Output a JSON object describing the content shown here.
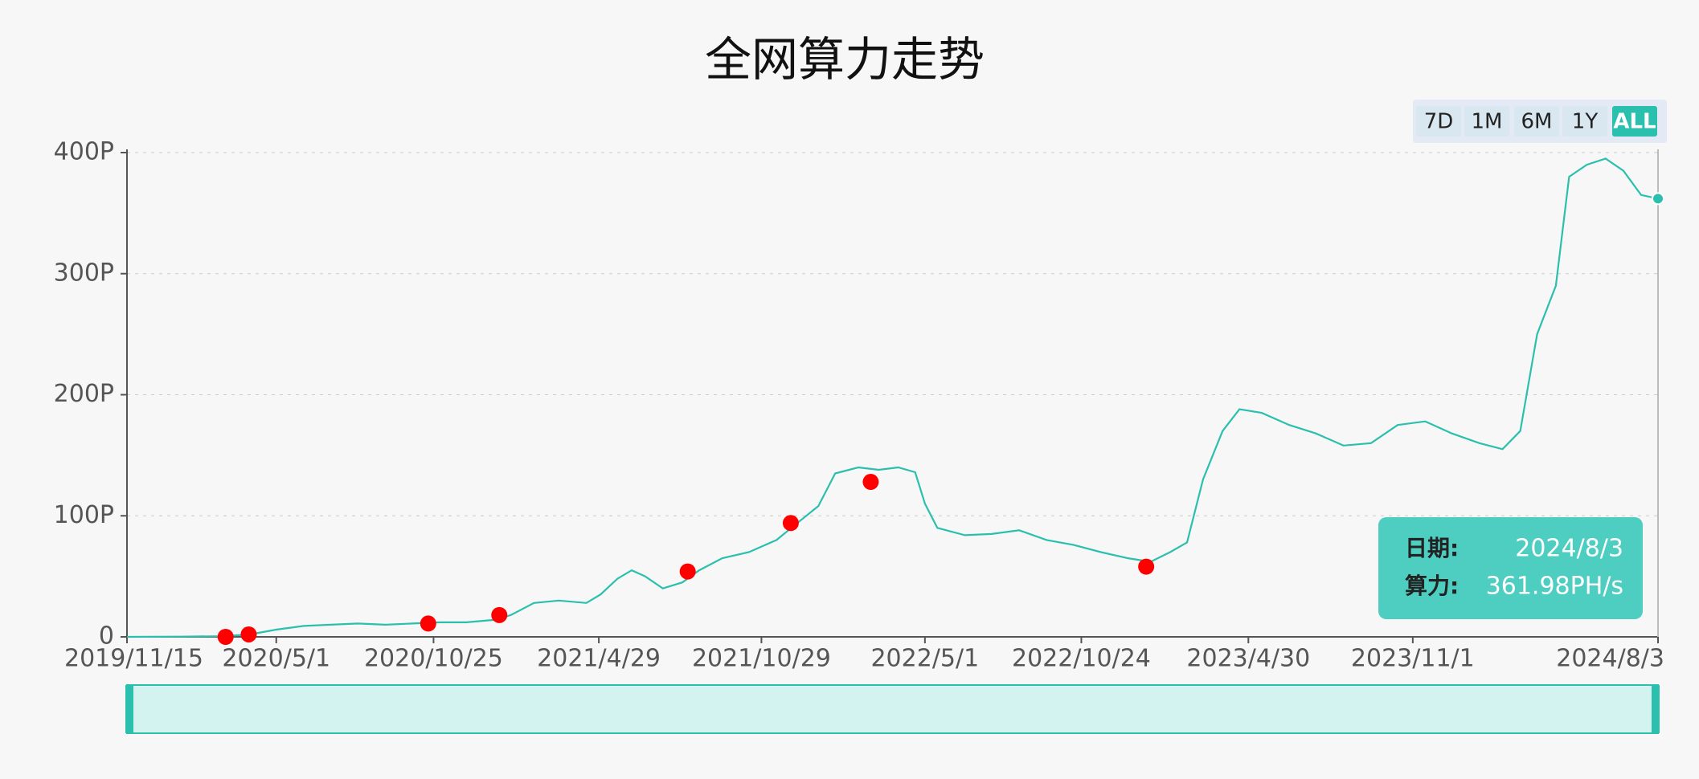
{
  "chart_data": {
    "type": "line",
    "title": "全网算力走势",
    "color": "#2bbfae",
    "x": [
      "2019/11/15",
      "2020/1/15",
      "2020/3/1",
      "2020/4/1",
      "2020/5/1",
      "2020/6/1",
      "2020/7/1",
      "2020/8/1",
      "2020/9/1",
      "2020/10/1",
      "2020/11/1",
      "2020/12/1",
      "2021/1/1",
      "2021/1/20",
      "2021/2/15",
      "2021/3/15",
      "2021/4/15",
      "2021/5/1",
      "2021/5/20",
      "2021/6/5",
      "2021/6/20",
      "2021/7/10",
      "2021/8/1",
      "2021/8/20",
      "2021/9/15",
      "2021/10/15",
      "2021/11/15",
      "2021/12/10",
      "2022/1/1",
      "2022/1/20",
      "2022/2/15",
      "2022/3/10",
      "2022/4/1",
      "2022/4/20",
      "2022/5/1",
      "2022/5/15",
      "2022/6/15",
      "2022/7/15",
      "2022/8/15",
      "2022/9/15",
      "2022/10/15",
      "2022/11/15",
      "2022/12/15",
      "2023/1/10",
      "2023/2/1",
      "2023/2/20",
      "2023/3/10",
      "2023/4/1",
      "2023/4/20",
      "2023/5/15",
      "2023/6/15",
      "2023/7/15",
      "2023/8/15",
      "2023/9/15",
      "2023/10/15",
      "2023/11/15",
      "2023/12/15",
      "2024/1/15",
      "2024/2/10",
      "2024/3/1",
      "2024/3/20",
      "2024/4/10",
      "2024/4/25",
      "2024/5/15",
      "2024/6/5",
      "2024/6/25",
      "2024/7/15",
      "2024/8/3"
    ],
    "values": [
      0,
      0.2,
      0.5,
      2,
      6,
      9,
      10,
      11,
      10,
      11,
      12,
      12,
      14,
      18,
      28,
      30,
      28,
      35,
      48,
      55,
      50,
      40,
      45,
      55,
      65,
      70,
      80,
      95,
      108,
      135,
      140,
      138,
      140,
      136,
      110,
      90,
      84,
      85,
      88,
      80,
      76,
      70,
      65,
      62,
      70,
      78,
      130,
      170,
      188,
      185,
      175,
      168,
      158,
      160,
      175,
      178,
      168,
      160,
      155,
      170,
      250,
      290,
      380,
      390,
      395,
      385,
      365,
      361.98
    ],
    "markers": {
      "color": "#ff0000",
      "x": [
        "2020/3/5",
        "2020/3/31",
        "2020/10/19",
        "2021/1/7",
        "2021/8/7",
        "2021/12/1",
        "2022/3/1",
        "2023/1/5"
      ],
      "values": [
        0,
        2,
        11,
        18,
        54,
        94,
        128,
        58
      ]
    },
    "xlim": [
      "2019/11/15",
      "2024/8/3"
    ],
    "xticks": [
      "2019/11/15",
      "2020/5/1",
      "2020/10/25",
      "2021/4/29",
      "2021/10/29",
      "2022/5/1",
      "2022/10/24",
      "2023/4/30",
      "2023/11/1",
      "2024/8/3"
    ],
    "ylim": [
      0,
      400
    ],
    "yticks": [
      0,
      {
        "value": 100,
        "label": "100P"
      },
      {
        "value": 200,
        "label": "200P"
      },
      {
        "value": 300,
        "label": "300P"
      },
      {
        "value": 400,
        "label": "400P"
      }
    ],
    "grid": true,
    "range_buttons": [
      "7D",
      "1M",
      "6M",
      "1Y",
      "ALL"
    ],
    "selected_range": 4,
    "tooltip": {
      "date_label": "日期:",
      "date": "2024/8/3",
      "value_label": "算力:",
      "value": "361.98PH/s"
    }
  }
}
